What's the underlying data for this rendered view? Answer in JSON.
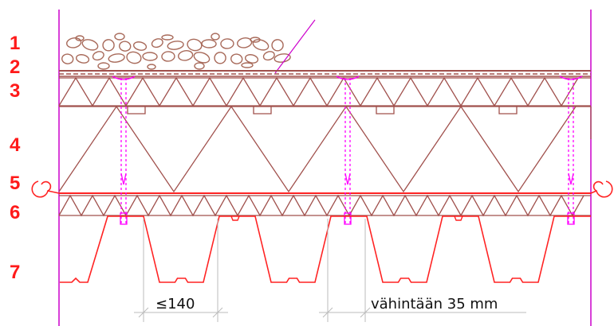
{
  "layers": [
    {
      "num": "1"
    },
    {
      "num": "2"
    },
    {
      "num": "3"
    },
    {
      "num": "4"
    },
    {
      "num": "5"
    },
    {
      "num": "6"
    },
    {
      "num": "7"
    }
  ],
  "dimensions": {
    "rib_spacing": "≤140",
    "min_distance": "vähintään 35 mm"
  },
  "colors": {
    "label": "#ff1a1a",
    "insulation": "#a0504c",
    "steel": "#ff2222",
    "fastener": "#ff00ff",
    "dimension": "#bbbbbb",
    "gravel": "#a86a5a"
  }
}
